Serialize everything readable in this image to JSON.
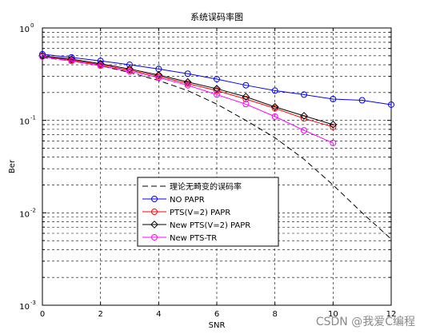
{
  "chart_data": {
    "type": "line",
    "title": "系统误码率图",
    "xlabel": "SNR",
    "ylabel": "Ber",
    "xlim": [
      0,
      12
    ],
    "ylim": [
      0.001,
      1
    ],
    "yscale": "log",
    "x_ticks": [
      0,
      2,
      4,
      6,
      8,
      10,
      12
    ],
    "y_ticks": [
      {
        "value": 0.001,
        "base": "10",
        "exp": "-3"
      },
      {
        "value": 0.01,
        "base": "10",
        "exp": "-2"
      },
      {
        "value": 0.1,
        "base": "10",
        "exp": "-1"
      },
      {
        "value": 1,
        "base": "10",
        "exp": "0"
      }
    ],
    "grid": true,
    "legend_position": "lower-left inside",
    "series": [
      {
        "name": "理论无畸变的误码率",
        "color": "#000000",
        "style": "dashed",
        "marker": "none",
        "x": [
          0,
          1,
          2,
          3,
          4,
          5,
          6,
          7,
          8,
          9,
          10,
          11,
          12
        ],
        "y": [
          0.48,
          0.44,
          0.39,
          0.33,
          0.27,
          0.21,
          0.15,
          0.1,
          0.065,
          0.038,
          0.02,
          0.01,
          0.0052
        ]
      },
      {
        "name": "NO PAPR",
        "color": "#0000ff",
        "style": "solid",
        "marker": "circle",
        "x": [
          0,
          1,
          2,
          3,
          4,
          5,
          6,
          7,
          8,
          9,
          10,
          11,
          12
        ],
        "y": [
          0.52,
          0.48,
          0.44,
          0.4,
          0.36,
          0.32,
          0.28,
          0.24,
          0.21,
          0.19,
          0.17,
          0.165,
          0.148
        ]
      },
      {
        "name": "PTS(V=2) PAPR",
        "color": "#ff0000",
        "style": "solid",
        "marker": "circle",
        "x": [
          0,
          1,
          2,
          3,
          4,
          5,
          6,
          7,
          8,
          9,
          10
        ],
        "y": [
          0.5,
          0.45,
          0.4,
          0.35,
          0.3,
          0.25,
          0.21,
          0.17,
          0.135,
          0.105,
          0.085
        ]
      },
      {
        "name": "New PTS(V=2) PAPR",
        "color": "#000000",
        "style": "solid",
        "marker": "diamond",
        "x": [
          0,
          1,
          2,
          3,
          4,
          5,
          6,
          7,
          8,
          9,
          10
        ],
        "y": [
          0.5,
          0.46,
          0.41,
          0.36,
          0.31,
          0.26,
          0.22,
          0.18,
          0.14,
          0.112,
          0.09
        ]
      },
      {
        "name": "New PTS-TR",
        "color": "#ff00ff",
        "style": "solid",
        "marker": "circle",
        "x": [
          0,
          1,
          2,
          3,
          4,
          5,
          6,
          7,
          8,
          9,
          10
        ],
        "y": [
          0.49,
          0.44,
          0.39,
          0.34,
          0.29,
          0.24,
          0.19,
          0.15,
          0.11,
          0.078,
          0.057
        ]
      }
    ]
  },
  "watermark": "CSDN @我爱C编程"
}
